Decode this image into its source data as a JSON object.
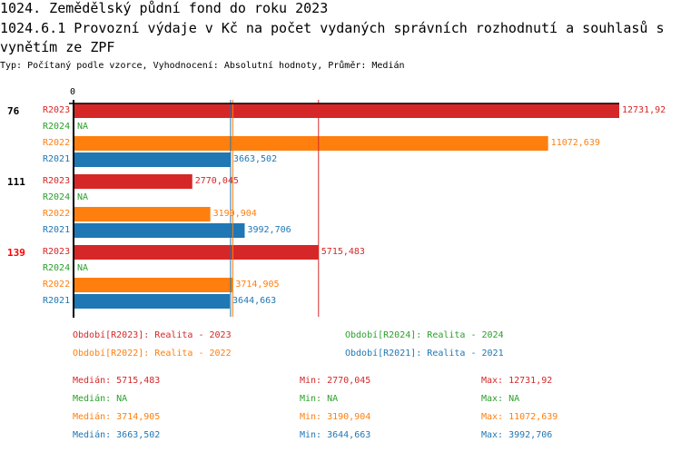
{
  "header": {
    "title": "1024. Zemědělský půdní fond  do roku 2023",
    "subtitle_line1": "1024.6.1 Provozní výdaje v Kč na počet vydaných správních rozhodnutí a souhlasů s",
    "subtitle_line2": " vynětím ze ZPF",
    "info": "Typ: Počítaný podle vzorce, Vyhodnocení: Absolutní hodnoty, Průměr: Medián"
  },
  "colors": {
    "R2023": "#d62728",
    "R2024": "#2ca02c",
    "R2022": "#ff7f0e",
    "R2021": "#1f77b4"
  },
  "chart_data": {
    "type": "bar",
    "orientation": "horizontal",
    "xlim": [
      0,
      12731.92
    ],
    "axis_zero_label": "0",
    "groups": [
      {
        "label": "76",
        "highlight": false,
        "bars": [
          {
            "series": "R2023",
            "value": 12731.92,
            "text": "12731,92"
          },
          {
            "series": "R2024",
            "value": null,
            "text": "NA"
          },
          {
            "series": "R2022",
            "value": 11072.639,
            "text": "11072,639"
          },
          {
            "series": "R2021",
            "value": 3663.502,
            "text": "3663,502"
          }
        ]
      },
      {
        "label": "111",
        "highlight": false,
        "bars": [
          {
            "series": "R2023",
            "value": 2770.045,
            "text": "2770,045"
          },
          {
            "series": "R2024",
            "value": null,
            "text": "NA"
          },
          {
            "series": "R2022",
            "value": 3190.904,
            "text": "3190,904"
          },
          {
            "series": "R2021",
            "value": 3992.706,
            "text": "3992,706"
          }
        ]
      },
      {
        "label": "139",
        "highlight": true,
        "bars": [
          {
            "series": "R2023",
            "value": 5715.483,
            "text": "5715,483"
          },
          {
            "series": "R2024",
            "value": null,
            "text": "NA"
          },
          {
            "series": "R2022",
            "value": 3714.905,
            "text": "3714,905"
          },
          {
            "series": "R2021",
            "value": 3644.663,
            "text": "3644,663"
          }
        ]
      }
    ],
    "median_lines": [
      {
        "series": "R2023",
        "value": 5715.483
      },
      {
        "series": "R2022",
        "value": 3714.905
      },
      {
        "series": "R2021",
        "value": 3663.502
      }
    ],
    "legend": [
      {
        "series": "R2023",
        "text": "Období[R2023]: Realita - 2023"
      },
      {
        "series": "R2024",
        "text": "Období[R2024]: Realita - 2024"
      },
      {
        "series": "R2022",
        "text": "Období[R2022]: Realita - 2022"
      },
      {
        "series": "R2021",
        "text": "Období[R2021]: Realita - 2021"
      }
    ],
    "stats": [
      {
        "series": "R2023",
        "median": "Medián: 5715,483",
        "min": "Min: 2770,045",
        "max": "Max: 12731,92"
      },
      {
        "series": "R2024",
        "median": "Medián: NA",
        "min": "Min: NA",
        "max": "Max: NA"
      },
      {
        "series": "R2022",
        "median": "Medián: 3714,905",
        "min": "Min: 3190,904",
        "max": "Max: 11072,639"
      },
      {
        "series": "R2021",
        "median": "Medián: 3663,502",
        "min": "Min: 3644,663",
        "max": "Max: 3992,706"
      }
    ]
  }
}
